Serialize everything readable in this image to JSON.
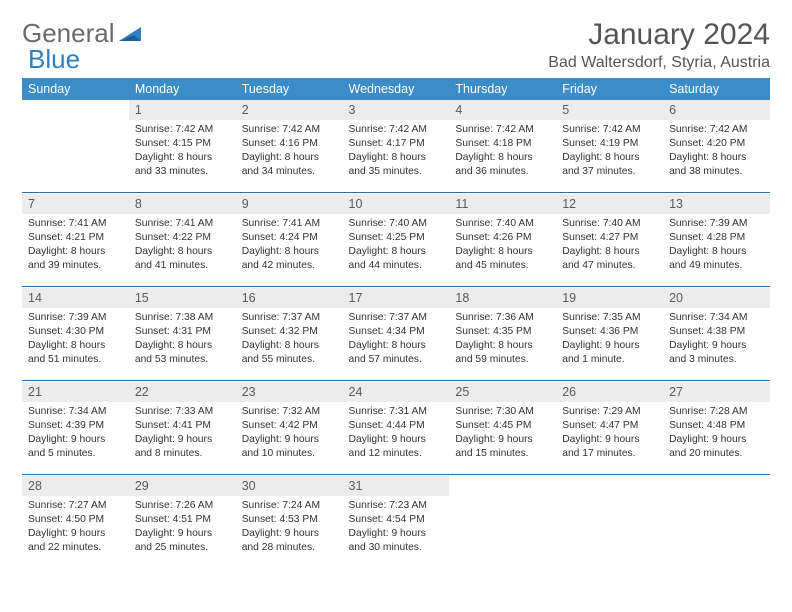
{
  "brand": {
    "part1": "General",
    "part2": "Blue"
  },
  "colors": {
    "header_bg": "#3b8cc9",
    "header_text": "#ffffff",
    "daynum_bg": "#ececec",
    "daynum_text": "#5a5a5a",
    "body_text": "#333333",
    "rule": "#2f6ea3",
    "logo_gray": "#6b6b6b",
    "logo_blue": "#2f7fc1"
  },
  "title": "January 2024",
  "location": "Bad Waltersdorf, Styria, Austria",
  "weekdays": [
    "Sunday",
    "Monday",
    "Tuesday",
    "Wednesday",
    "Thursday",
    "Friday",
    "Saturday"
  ],
  "weeks": [
    [
      null,
      {
        "n": "1",
        "sr": "7:42 AM",
        "ss": "4:15 PM",
        "dl": "8 hours and 33 minutes."
      },
      {
        "n": "2",
        "sr": "7:42 AM",
        "ss": "4:16 PM",
        "dl": "8 hours and 34 minutes."
      },
      {
        "n": "3",
        "sr": "7:42 AM",
        "ss": "4:17 PM",
        "dl": "8 hours and 35 minutes."
      },
      {
        "n": "4",
        "sr": "7:42 AM",
        "ss": "4:18 PM",
        "dl": "8 hours and 36 minutes."
      },
      {
        "n": "5",
        "sr": "7:42 AM",
        "ss": "4:19 PM",
        "dl": "8 hours and 37 minutes."
      },
      {
        "n": "6",
        "sr": "7:42 AM",
        "ss": "4:20 PM",
        "dl": "8 hours and 38 minutes."
      }
    ],
    [
      {
        "n": "7",
        "sr": "7:41 AM",
        "ss": "4:21 PM",
        "dl": "8 hours and 39 minutes."
      },
      {
        "n": "8",
        "sr": "7:41 AM",
        "ss": "4:22 PM",
        "dl": "8 hours and 41 minutes."
      },
      {
        "n": "9",
        "sr": "7:41 AM",
        "ss": "4:24 PM",
        "dl": "8 hours and 42 minutes."
      },
      {
        "n": "10",
        "sr": "7:40 AM",
        "ss": "4:25 PM",
        "dl": "8 hours and 44 minutes."
      },
      {
        "n": "11",
        "sr": "7:40 AM",
        "ss": "4:26 PM",
        "dl": "8 hours and 45 minutes."
      },
      {
        "n": "12",
        "sr": "7:40 AM",
        "ss": "4:27 PM",
        "dl": "8 hours and 47 minutes."
      },
      {
        "n": "13",
        "sr": "7:39 AM",
        "ss": "4:28 PM",
        "dl": "8 hours and 49 minutes."
      }
    ],
    [
      {
        "n": "14",
        "sr": "7:39 AM",
        "ss": "4:30 PM",
        "dl": "8 hours and 51 minutes."
      },
      {
        "n": "15",
        "sr": "7:38 AM",
        "ss": "4:31 PM",
        "dl": "8 hours and 53 minutes."
      },
      {
        "n": "16",
        "sr": "7:37 AM",
        "ss": "4:32 PM",
        "dl": "8 hours and 55 minutes."
      },
      {
        "n": "17",
        "sr": "7:37 AM",
        "ss": "4:34 PM",
        "dl": "8 hours and 57 minutes."
      },
      {
        "n": "18",
        "sr": "7:36 AM",
        "ss": "4:35 PM",
        "dl": "8 hours and 59 minutes."
      },
      {
        "n": "19",
        "sr": "7:35 AM",
        "ss": "4:36 PM",
        "dl": "9 hours and 1 minute."
      },
      {
        "n": "20",
        "sr": "7:34 AM",
        "ss": "4:38 PM",
        "dl": "9 hours and 3 minutes."
      }
    ],
    [
      {
        "n": "21",
        "sr": "7:34 AM",
        "ss": "4:39 PM",
        "dl": "9 hours and 5 minutes."
      },
      {
        "n": "22",
        "sr": "7:33 AM",
        "ss": "4:41 PM",
        "dl": "9 hours and 8 minutes."
      },
      {
        "n": "23",
        "sr": "7:32 AM",
        "ss": "4:42 PM",
        "dl": "9 hours and 10 minutes."
      },
      {
        "n": "24",
        "sr": "7:31 AM",
        "ss": "4:44 PM",
        "dl": "9 hours and 12 minutes."
      },
      {
        "n": "25",
        "sr": "7:30 AM",
        "ss": "4:45 PM",
        "dl": "9 hours and 15 minutes."
      },
      {
        "n": "26",
        "sr": "7:29 AM",
        "ss": "4:47 PM",
        "dl": "9 hours and 17 minutes."
      },
      {
        "n": "27",
        "sr": "7:28 AM",
        "ss": "4:48 PM",
        "dl": "9 hours and 20 minutes."
      }
    ],
    [
      {
        "n": "28",
        "sr": "7:27 AM",
        "ss": "4:50 PM",
        "dl": "9 hours and 22 minutes."
      },
      {
        "n": "29",
        "sr": "7:26 AM",
        "ss": "4:51 PM",
        "dl": "9 hours and 25 minutes."
      },
      {
        "n": "30",
        "sr": "7:24 AM",
        "ss": "4:53 PM",
        "dl": "9 hours and 28 minutes."
      },
      {
        "n": "31",
        "sr": "7:23 AM",
        "ss": "4:54 PM",
        "dl": "9 hours and 30 minutes."
      },
      null,
      null,
      null
    ]
  ],
  "labels": {
    "sunrise": "Sunrise:",
    "sunset": "Sunset:",
    "daylight": "Daylight:"
  }
}
